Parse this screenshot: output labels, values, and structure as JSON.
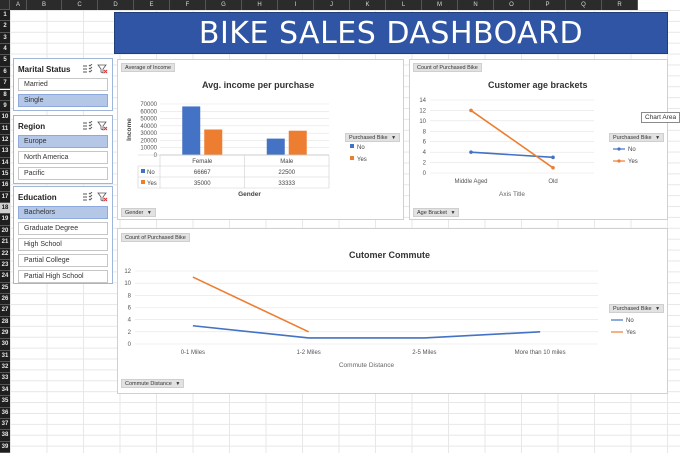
{
  "sheet": {
    "columns": [
      "A",
      "B",
      "C",
      "D",
      "E",
      "F",
      "G",
      "H",
      "I",
      "J",
      "K",
      "L",
      "M",
      "N",
      "O",
      "P",
      "Q",
      "R"
    ],
    "rows": [
      "1",
      "2",
      "3",
      "4",
      "5",
      "6",
      "7",
      "8",
      "9",
      "10",
      "11",
      "12",
      "13",
      "14",
      "15",
      "16",
      "17",
      "18",
      "19",
      "20",
      "21",
      "22",
      "23",
      "24",
      "25",
      "26",
      "27",
      "28",
      "29",
      "30",
      "31",
      "32",
      "33",
      "34",
      "35",
      "36",
      "37",
      "38",
      "39"
    ],
    "active_row": "18"
  },
  "banner": {
    "title": "BIKE SALES DASHBOARD",
    "color": "#2f55a4"
  },
  "slicers": {
    "marital": {
      "title": "Marital Status",
      "items": [
        {
          "label": "Married",
          "selected": false
        },
        {
          "label": "Single",
          "selected": true
        }
      ]
    },
    "region": {
      "title": "Region",
      "items": [
        {
          "label": "Europe",
          "selected": true
        },
        {
          "label": "North America",
          "selected": false
        },
        {
          "label": "Pacific",
          "selected": false
        }
      ]
    },
    "education": {
      "title": "Education",
      "items": [
        {
          "label": "Bachelors",
          "selected": true
        },
        {
          "label": "Graduate Degree",
          "selected": false
        },
        {
          "label": "High School",
          "selected": false
        },
        {
          "label": "Partial College",
          "selected": false
        },
        {
          "label": "Partial High School",
          "selected": false
        }
      ]
    }
  },
  "charts": {
    "income": {
      "value_button": "Average of Income",
      "axis_button": "Gender",
      "legend_button": "Purchased Bike",
      "legend_dd": "▼"
    },
    "age": {
      "value_button": "Count of Purchased Bike",
      "axis_button": "Age Bracket",
      "legend_button": "Purchased Bike",
      "legend_dd": "▼"
    },
    "commute": {
      "value_button": "Count of Purchased Bike",
      "axis_button": "Commute Distance",
      "legend_button": "Purchased Bike",
      "legend_dd": "▼"
    }
  },
  "tooltip": "Chart Area",
  "colors": {
    "no": "#4472c4",
    "yes": "#ed7d31",
    "selected": "#b4c7e7"
  },
  "chart_data": [
    {
      "type": "bar",
      "title": "Avg. income per purchase",
      "xlabel": "Gender",
      "ylabel": "Income",
      "categories": [
        "Female",
        "Male"
      ],
      "series": [
        {
          "name": "No",
          "values": [
            66667,
            22500
          ]
        },
        {
          "name": "Yes",
          "values": [
            35000,
            33333
          ]
        }
      ],
      "ylim": [
        0,
        70000
      ],
      "yticks": [
        0,
        10000,
        20000,
        30000,
        40000,
        50000,
        60000,
        70000
      ],
      "data_table": true
    },
    {
      "type": "line",
      "title": "Customer age brackets",
      "xlabel": "Axis Title",
      "categories": [
        "Middle Aged",
        "Old"
      ],
      "series": [
        {
          "name": "No",
          "values": [
            4,
            3
          ]
        },
        {
          "name": "Yes",
          "values": [
            12,
            1
          ]
        }
      ],
      "ylim": [
        0,
        14
      ],
      "yticks": [
        0,
        2,
        4,
        6,
        8,
        10,
        12,
        14
      ]
    },
    {
      "type": "line",
      "title": "Cutomer Commute",
      "xlabel": "Commute Distance",
      "categories": [
        "0-1 Miles",
        "1-2 Miles",
        "2-5 Miles",
        "More than 10 miles"
      ],
      "series": [
        {
          "name": "No",
          "values": [
            3,
            1,
            1,
            2
          ]
        },
        {
          "name": "Yes",
          "values": [
            11,
            2,
            null,
            null
          ]
        }
      ],
      "ylim": [
        0,
        12
      ],
      "yticks": [
        0,
        2,
        4,
        6,
        8,
        10,
        12
      ]
    }
  ]
}
